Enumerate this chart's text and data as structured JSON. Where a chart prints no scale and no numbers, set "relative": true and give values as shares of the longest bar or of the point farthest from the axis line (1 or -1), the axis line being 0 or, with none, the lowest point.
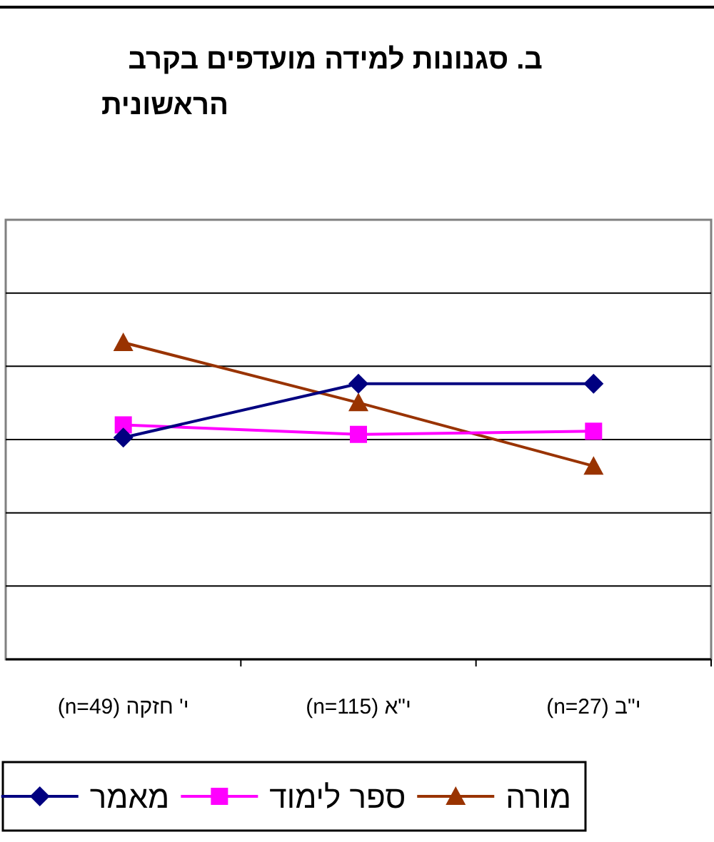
{
  "chart_data": {
    "type": "line",
    "title": "ב. סגנונות למידה מועדפים בקרב\nהראשונית",
    "categories": [
      "י' חזקה (n=49)",
      "י\"א (n=115)",
      "י\"ב (n=27)"
    ],
    "relative": true,
    "grid": "y",
    "legend": "bottom",
    "series": [
      {
        "name": "מורה",
        "color": "#993300",
        "marker": "triangle",
        "values": [
          1,
          0.81,
          0.61
        ]
      },
      {
        "name": "ספר לימוד",
        "color": "#ff00ff",
        "marker": "square",
        "values": [
          0.74,
          0.71,
          0.72
        ]
      },
      {
        "name": "מאמר",
        "color": "#000080",
        "marker": "diamond",
        "values": [
          0.7,
          0.87,
          0.87
        ]
      }
    ]
  }
}
